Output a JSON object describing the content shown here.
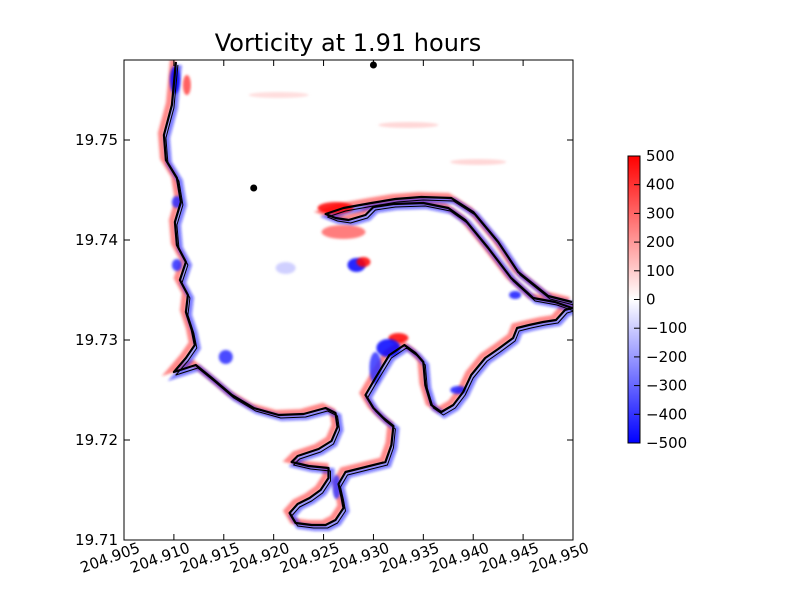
{
  "chart_data": {
    "type": "heatmap",
    "title": "Vorticity at 1.91 hours",
    "xlabel": "",
    "ylabel": "",
    "xlim": [
      204.905,
      204.95
    ],
    "ylim": [
      19.71,
      19.758
    ],
    "x_ticks": [
      "204.905",
      "204.910",
      "204.915",
      "204.920",
      "204.925",
      "204.930",
      "204.935",
      "204.940",
      "204.945",
      "204.950"
    ],
    "y_ticks": [
      "19.71",
      "19.72",
      "19.73",
      "19.74",
      "19.75"
    ],
    "colorbar": {
      "range": [
        -500,
        500
      ],
      "ticks": [
        "500",
        "400",
        "300",
        "200",
        "100",
        "0",
        "−100",
        "−200",
        "−300",
        "−400",
        "−500"
      ],
      "colors": [
        "#0000ff",
        "#ffffff",
        "#ff0000"
      ]
    },
    "markers": [
      {
        "x": 204.918,
        "y": 19.7452
      },
      {
        "x": 204.93,
        "y": 19.7575
      }
    ],
    "coastline": [
      [
        204.9102,
        19.7578
      ],
      [
        204.9098,
        19.7535
      ],
      [
        204.909,
        19.7505
      ],
      [
        204.9092,
        19.748
      ],
      [
        204.9103,
        19.7462
      ],
      [
        204.9107,
        19.7438
      ],
      [
        204.9101,
        19.7418
      ],
      [
        204.9103,
        19.7395
      ],
      [
        204.9112,
        19.7378
      ],
      [
        204.9106,
        19.736
      ],
      [
        204.9114,
        19.7345
      ],
      [
        204.9112,
        19.7328
      ],
      [
        204.9118,
        19.731
      ],
      [
        204.9121,
        19.7295
      ],
      [
        204.9112,
        19.7282
      ],
      [
        204.91,
        19.7268
      ],
      [
        204.9122,
        19.7275
      ],
      [
        204.9138,
        19.7262
      ],
      [
        204.9158,
        19.7245
      ],
      [
        204.918,
        19.7232
      ],
      [
        204.9205,
        19.7225
      ],
      [
        204.923,
        19.7226
      ],
      [
        204.9252,
        19.7232
      ],
      [
        204.9262,
        19.7227
      ],
      [
        204.9264,
        19.7213
      ],
      [
        204.9258,
        19.7199
      ],
      [
        204.9245,
        19.7191
      ],
      [
        204.9224,
        19.7184
      ],
      [
        204.9218,
        19.7178
      ],
      [
        204.9235,
        19.7174
      ],
      [
        204.9255,
        19.7172
      ],
      [
        204.9255,
        19.7162
      ],
      [
        204.9247,
        19.715
      ],
      [
        204.9236,
        19.7142
      ],
      [
        204.9224,
        19.7136
      ],
      [
        204.9216,
        19.7127
      ],
      [
        204.9222,
        19.7117
      ],
      [
        204.9238,
        19.7115
      ],
      [
        204.9252,
        19.7115
      ],
      [
        204.9262,
        19.712
      ],
      [
        204.927,
        19.7132
      ],
      [
        204.9268,
        19.7143
      ],
      [
        204.9265,
        19.7156
      ],
      [
        204.9272,
        19.7168
      ],
      [
        204.9292,
        19.7173
      ],
      [
        204.9312,
        19.7178
      ],
      [
        204.9318,
        19.7195
      ],
      [
        204.932,
        19.7214
      ],
      [
        204.931,
        19.7222
      ],
      [
        204.93,
        19.7232
      ],
      [
        204.9292,
        19.7245
      ],
      [
        204.9302,
        19.7262
      ],
      [
        204.9316,
        19.7285
      ],
      [
        204.9331,
        19.7295
      ],
      [
        204.9342,
        19.7287
      ],
      [
        204.935,
        19.7278
      ],
      [
        204.9352,
        19.7255
      ],
      [
        204.9358,
        19.7235
      ],
      [
        204.9368,
        19.7228
      ],
      [
        204.938,
        19.7235
      ],
      [
        204.939,
        19.7248
      ],
      [
        204.9398,
        19.7265
      ],
      [
        204.9412,
        19.7282
      ],
      [
        204.9425,
        19.7291
      ],
      [
        204.944,
        19.7302
      ],
      [
        204.9444,
        19.7312
      ],
      [
        204.9456,
        19.7315
      ],
      [
        204.947,
        19.7318
      ],
      [
        204.9483,
        19.732
      ],
      [
        204.9492,
        19.733
      ],
      [
        204.9499,
        19.7332
      ],
      [
        204.9482,
        19.7338
      ],
      [
        204.946,
        19.7342
      ],
      [
        204.9438,
        19.7362
      ],
      [
        204.9415,
        19.7392
      ],
      [
        204.9392,
        19.742
      ],
      [
        204.9375,
        19.7432
      ],
      [
        204.935,
        19.7437
      ],
      [
        204.932,
        19.7436
      ],
      [
        204.93,
        19.7433
      ],
      [
        204.9292,
        19.7425
      ],
      [
        204.9275,
        19.742
      ],
      [
        204.9262,
        19.7422
      ],
      [
        204.9252,
        19.7426
      ],
      [
        204.927,
        19.7432
      ],
      [
        204.9298,
        19.7437
      ],
      [
        204.9322,
        19.7441
      ],
      [
        204.9348,
        19.7443
      ],
      [
        204.9378,
        19.7442
      ],
      [
        204.94,
        19.7428
      ],
      [
        204.9425,
        19.7398
      ],
      [
        204.9445,
        19.7368
      ],
      [
        204.9475,
        19.7344
      ],
      [
        204.9499,
        19.7338
      ]
    ]
  }
}
